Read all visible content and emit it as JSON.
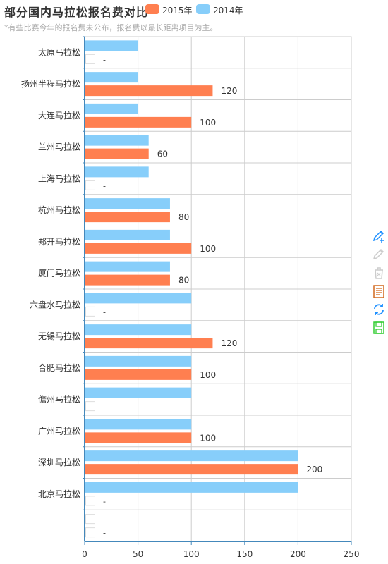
{
  "title": "部分国内马拉松报名费对比",
  "subtitle": "*有些比赛今年的报名费未公布，报名费以最长距离项目为主。",
  "legend": [
    {
      "name": "2015年",
      "color": "#ff7f50"
    },
    {
      "name": "2014年",
      "color": "#87cefa"
    }
  ],
  "chart_data": {
    "type": "bar",
    "orientation": "horizontal",
    "title": "部分国内马拉松报名费对比",
    "subtitle": "*有些比赛今年的报名费未公布，报名费以最长距离项目为主。",
    "categories": [
      "太原马拉松",
      "扬州半程马拉松",
      "大连马拉松",
      "兰州马拉松",
      "上海马拉松",
      "杭州马拉松",
      "郑开马拉松",
      "厦门马拉松",
      "六盘水马拉松",
      "无锡马拉松",
      "合肥马拉松",
      "儋州马拉松",
      "广州马拉松",
      "深圳马拉松",
      "北京马拉松",
      ""
    ],
    "series": [
      {
        "name": "2014年",
        "color": "#87cefa",
        "values": [
          50,
          50,
          50,
          60,
          60,
          80,
          80,
          80,
          100,
          100,
          100,
          100,
          100,
          200,
          200,
          null
        ]
      },
      {
        "name": "2015年",
        "color": "#ff7f50",
        "values": [
          null,
          120,
          100,
          60,
          null,
          80,
          100,
          80,
          null,
          120,
          100,
          null,
          100,
          200,
          null,
          null
        ]
      }
    ],
    "missing_label": "-",
    "xlim": [
      0,
      250
    ],
    "xticks": [
      0,
      50,
      100,
      150,
      200,
      250
    ],
    "grid": true,
    "legend_position": "top"
  },
  "toolbox": [
    {
      "name": "mark-icon",
      "color": "#1e90ff"
    },
    {
      "name": "mark-undo-icon",
      "color": "#cccccc"
    },
    {
      "name": "mark-clear-icon",
      "color": "#cccccc"
    },
    {
      "name": "data-view-icon",
      "color": "#d2691e"
    },
    {
      "name": "restore-icon",
      "color": "#1e90ff"
    },
    {
      "name": "save-image-icon",
      "color": "#32cd32"
    }
  ]
}
